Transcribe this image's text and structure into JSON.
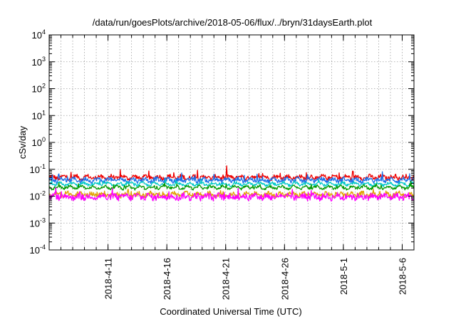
{
  "chart_data": {
    "type": "line",
    "title": "/data/run/goesPlots/archive/2018-05-06/flux/../bryn/31daysEarth.plot",
    "xlabel": "Coordinated Universal Time (UTC)",
    "ylabel": "cSv/day",
    "y_scale": "log",
    "ylim": [
      0.0001,
      10000
    ],
    "y_ticks": [
      {
        "value": 0.0001,
        "base": "10",
        "exp": "-4"
      },
      {
        "value": 0.001,
        "base": "10",
        "exp": "-3"
      },
      {
        "value": 0.01,
        "base": "10",
        "exp": "-2"
      },
      {
        "value": 0.1,
        "base": "10",
        "exp": "-1"
      },
      {
        "value": 1,
        "base": "10",
        "exp": "0"
      },
      {
        "value": 10,
        "base": "10",
        "exp": "1"
      },
      {
        "value": 100,
        "base": "10",
        "exp": "2"
      },
      {
        "value": 1000,
        "base": "10",
        "exp": "3"
      },
      {
        "value": 10000,
        "base": "10",
        "exp": "4"
      }
    ],
    "xlim": [
      "2018-04-06",
      "2018-05-07"
    ],
    "x_ticks": [
      "2018-4-11",
      "2018-4-16",
      "2018-4-21",
      "2018-4-26",
      "2018-5-1",
      "2018-5-6"
    ],
    "x_tick_dates": [
      "2018-04-11",
      "2018-04-16",
      "2018-04-21",
      "2018-04-26",
      "2018-05-01",
      "2018-05-06"
    ],
    "grid": true,
    "legend": "none",
    "series": [
      {
        "color": "#ee0000",
        "base": 0.05,
        "spread": 0.16,
        "spike": 0.35
      },
      {
        "color": "#1a6fe8",
        "base": 0.04,
        "spread": 0.16,
        "spike": 0.3
      },
      {
        "color": "#00c8c8",
        "base": 0.028,
        "spread": 0.1,
        "spike": 0.15
      },
      {
        "color": "#009900",
        "base": 0.021,
        "spread": 0.1,
        "spike": 0.15
      },
      {
        "color": "#e0a000",
        "base": 0.0115,
        "spread": 0.18,
        "spike": 0.1
      },
      {
        "color": "#ff00ff",
        "base": 0.0095,
        "spread": 0.24,
        "spike": 0.25
      }
    ]
  }
}
